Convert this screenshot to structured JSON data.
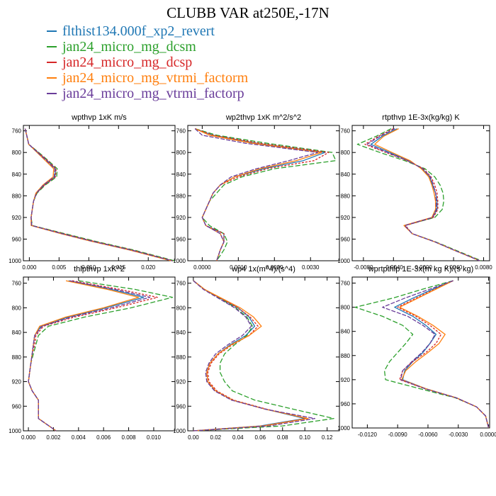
{
  "figure_title": "CLUBB VAR at250E,-17N",
  "series": [
    {
      "name": "flthist134.000f_xp2_revert",
      "color": "#1f77b4",
      "dash": ""
    },
    {
      "name": "jan24_micro_mg_dcsm",
      "color": "#2ca02c",
      "dash": "7,3"
    },
    {
      "name": "jan24_micro_mg_dcsp",
      "color": "#d62728",
      "dash": "3,2"
    },
    {
      "name": "jan24_micro_mg_vtrmi_factorm",
      "color": "#ff7f0e",
      "dash": ""
    },
    {
      "name": "jan24_micro_mg_vtrmi_factorp",
      "color": "#6a3d9a",
      "dash": "6,2"
    }
  ],
  "chart_data": [
    {
      "type": "line",
      "title": "wpthvp   1xK m/s",
      "xlim": [
        -0.001,
        0.0245
      ],
      "ylim": [
        1000,
        750
      ],
      "xticks": [
        0,
        0.005,
        0.01,
        0.015,
        0.02
      ],
      "xticklabels": [
        "0.000",
        "0.005",
        "0.010",
        "0.015",
        "0.020"
      ],
      "yticks": [
        760,
        800,
        840,
        880,
        920,
        960,
        1000
      ],
      "y": [
        756,
        770,
        785,
        800,
        815,
        830,
        845,
        860,
        875,
        890,
        905,
        920,
        935,
        950,
        965,
        980,
        1000
      ],
      "series": [
        {
          "values": [
            -0.0007,
            -0.0004,
            -0.0001,
            0.0015,
            0.003,
            0.0044,
            0.0043,
            0.0025,
            0.0012,
            0.0007,
            0.0005,
            0.0003,
            0.0004,
            0.0055,
            0.011,
            0.017,
            0.024
          ]
        },
        {
          "values": [
            -0.0007,
            -0.0004,
            -0.0001,
            0.0016,
            0.0032,
            0.0047,
            0.0046,
            0.0027,
            0.0013,
            0.0007,
            0.0005,
            0.0003,
            0.0005,
            0.006,
            0.0115,
            0.0175,
            0.0244
          ]
        },
        {
          "values": [
            -0.0007,
            -0.0004,
            -0.0001,
            0.0015,
            0.0031,
            0.0045,
            0.0044,
            0.0026,
            0.0012,
            0.0007,
            0.0005,
            0.0003,
            0.0004,
            0.0057,
            0.0112,
            0.0172,
            0.0241
          ]
        },
        {
          "values": [
            -0.0007,
            -0.0004,
            -0.0001,
            0.0013,
            0.0027,
            0.0041,
            0.004,
            0.0023,
            0.0011,
            0.0007,
            0.0005,
            0.0003,
            0.0003,
            0.0053,
            0.0108,
            0.0168,
            0.0238
          ]
        },
        {
          "values": [
            -0.0007,
            -0.0004,
            -0.0001,
            0.0014,
            0.0029,
            0.0043,
            0.0042,
            0.0024,
            0.0012,
            0.0007,
            0.0005,
            0.0003,
            0.0004,
            0.0055,
            0.011,
            0.017,
            0.024
          ]
        }
      ]
    },
    {
      "type": "line",
      "title": "wp2thvp   1xK m^2/s^2",
      "xlim": [
        -0.0004,
        0.0038
      ],
      "ylim": [
        1000,
        750
      ],
      "xticks": [
        0,
        0.001,
        0.002,
        0.003
      ],
      "xticklabels": [
        "0.0000",
        "0.0010",
        "0.0020",
        "0.0030"
      ],
      "yticks": [
        760,
        800,
        840,
        880,
        920,
        960,
        1000
      ],
      "y": [
        756,
        768,
        783,
        800,
        815,
        830,
        845,
        860,
        875,
        890,
        905,
        920,
        935,
        950,
        965,
        980,
        1000
      ],
      "series": [
        {
          "values": [
            -0.0002,
            0.0003,
            0.0015,
            0.0034,
            0.0028,
            0.0017,
            0.0009,
            0.0005,
            0.0003,
            0.0002,
            0.0001,
            0.0,
            0.0001,
            0.0006,
            0.0006,
            0.0005,
            0.0004
          ]
        },
        {
          "values": [
            -0.0002,
            0.0004,
            0.0018,
            0.0036,
            0.0037,
            0.002,
            0.0011,
            0.0006,
            0.0004,
            0.0002,
            0.0001,
            0.0,
            0.0002,
            0.0006,
            0.0007,
            0.0006,
            0.0004
          ]
        },
        {
          "values": [
            -0.0002,
            0.0003,
            0.0016,
            0.0035,
            0.0031,
            0.0018,
            0.001,
            0.0005,
            0.0003,
            0.0002,
            0.0001,
            0.0,
            0.0001,
            0.0006,
            0.0006,
            0.0005,
            0.0004
          ]
        },
        {
          "values": [
            -0.0002,
            0.0002,
            0.0014,
            0.0033,
            0.0026,
            0.0016,
            0.0009,
            0.0005,
            0.0003,
            0.0002,
            0.0001,
            0.0,
            0.0001,
            0.0005,
            0.0006,
            0.0005,
            0.0004
          ]
        },
        {
          "values": [
            -0.0002,
            0.0,
            0.0012,
            0.0032,
            0.0024,
            0.0015,
            0.0008,
            0.0005,
            0.0003,
            0.0002,
            0.0001,
            0.0,
            0.0001,
            0.0005,
            0.0006,
            0.0005,
            0.0004
          ]
        }
      ]
    },
    {
      "type": "line",
      "title": "rtpthvp   1E-3x(kg/kg) K",
      "xlim": [
        -0.0095,
        0.0088
      ],
      "ylim": [
        1000,
        750
      ],
      "xticks": [
        -0.008,
        -0.004,
        0,
        0.004,
        0.008
      ],
      "xticklabels": [
        "-0.0080",
        "-0.0040",
        "0.0000",
        "0.0040",
        "0.0080"
      ],
      "yticks": [
        760,
        800,
        840,
        880,
        920,
        960,
        1000
      ],
      "y": [
        756,
        770,
        785,
        800,
        815,
        830,
        845,
        860,
        875,
        890,
        905,
        920,
        935,
        950,
        965,
        980,
        1000
      ],
      "series": [
        {
          "values": [
            -0.0035,
            -0.0055,
            -0.007,
            -0.0045,
            -0.002,
            -0.0002,
            0.0008,
            0.0012,
            0.0016,
            0.0018,
            0.0018,
            0.0012,
            -0.0025,
            -0.0015,
            0.0015,
            0.004,
            0.0075
          ]
        },
        {
          "values": [
            -0.0043,
            -0.0063,
            -0.0088,
            -0.0058,
            -0.0025,
            0.0002,
            0.0015,
            0.0022,
            0.0026,
            0.0027,
            0.0025,
            0.0015,
            -0.0025,
            -0.0015,
            0.0016,
            0.0042,
            0.0077
          ]
        },
        {
          "values": [
            -0.004,
            -0.006,
            -0.0078,
            -0.005,
            -0.0022,
            0.0,
            0.001,
            0.0015,
            0.0018,
            0.0019,
            0.0019,
            0.0013,
            -0.0024,
            -0.0015,
            0.0015,
            0.004,
            0.0075
          ]
        },
        {
          "values": [
            -0.0033,
            -0.0053,
            -0.0065,
            -0.0042,
            -0.0018,
            -0.0003,
            0.0007,
            0.0011,
            0.0014,
            0.0016,
            0.0016,
            0.0011,
            -0.0026,
            -0.0015,
            0.0015,
            0.004,
            0.0075
          ]
        },
        {
          "values": [
            -0.0038,
            -0.0058,
            -0.0075,
            -0.0048,
            -0.0021,
            -0.0001,
            0.0009,
            0.0013,
            0.0016,
            0.0017,
            0.0017,
            0.0012,
            -0.0025,
            -0.0015,
            0.0015,
            0.004,
            0.0075
          ]
        }
      ]
    },
    {
      "type": "line",
      "title": "thlpthvp   1xK^2",
      "xlim": [
        -0.0004,
        0.0117
      ],
      "ylim": [
        1000,
        750
      ],
      "xticks": [
        0,
        0.002,
        0.004,
        0.006,
        0.008,
        0.01
      ],
      "xticklabels": [
        "0.000",
        "0.002",
        "0.004",
        "0.006",
        "0.008",
        "0.010"
      ],
      "yticks": [
        760,
        800,
        840,
        880,
        920,
        960,
        1000
      ],
      "y": [
        756,
        770,
        783,
        800,
        815,
        830,
        845,
        860,
        875,
        890,
        905,
        920,
        935,
        950,
        965,
        980,
        1000
      ],
      "series": [
        {
          "values": [
            0.0032,
            0.0066,
            0.0092,
            0.0062,
            0.0032,
            0.001,
            0.0005,
            0.0004,
            0.0003,
            0.0002,
            0.0001,
            0.0,
            0.0003,
            0.0008,
            0.0008,
            0.0008,
            0.0022
          ]
        },
        {
          "values": [
            0.004,
            0.0085,
            0.0115,
            0.0082,
            0.0045,
            0.0016,
            0.0008,
            0.0006,
            0.0004,
            0.0002,
            0.0001,
            0.0,
            0.0003,
            0.0008,
            0.0008,
            0.0008,
            0.0022
          ]
        },
        {
          "values": [
            0.0035,
            0.0073,
            0.0103,
            0.007,
            0.0037,
            0.0012,
            0.0006,
            0.0005,
            0.0003,
            0.0002,
            0.0001,
            0.0,
            0.0003,
            0.0008,
            0.0008,
            0.0008,
            0.0022
          ]
        },
        {
          "values": [
            0.003,
            0.0063,
            0.0088,
            0.006,
            0.003,
            0.0009,
            0.0005,
            0.0004,
            0.0003,
            0.0002,
            0.0001,
            0.0,
            0.0003,
            0.0008,
            0.0008,
            0.0008,
            0.0022
          ]
        },
        {
          "values": [
            0.0033,
            0.0069,
            0.0097,
            0.0066,
            0.0034,
            0.0011,
            0.0005,
            0.0004,
            0.0003,
            0.0002,
            0.0001,
            0.0,
            0.0003,
            0.0008,
            0.0008,
            0.0008,
            0.0022
          ]
        }
      ]
    },
    {
      "type": "line",
      "title": "wp4   1x(m^4)/(s^4)",
      "xlim": [
        -0.005,
        0.131
      ],
      "ylim": [
        1000,
        750
      ],
      "xticks": [
        0,
        0.02,
        0.04,
        0.06,
        0.08,
        0.1,
        0.12
      ],
      "xticklabels": [
        "0.00",
        "0.02",
        "0.04",
        "0.06",
        "0.08",
        "0.10",
        "0.12"
      ],
      "yticks": [
        760,
        800,
        840,
        880,
        920,
        960,
        1000
      ],
      "y": [
        756,
        770,
        785,
        800,
        815,
        830,
        845,
        860,
        875,
        890,
        905,
        920,
        935,
        950,
        965,
        980,
        992,
        1000
      ],
      "series": [
        {
          "values": [
            0.0,
            0.01,
            0.025,
            0.04,
            0.05,
            0.055,
            0.047,
            0.033,
            0.022,
            0.015,
            0.012,
            0.013,
            0.02,
            0.035,
            0.065,
            0.1,
            0.06,
            0.0
          ]
        },
        {
          "values": [
            0.0,
            0.01,
            0.024,
            0.038,
            0.048,
            0.053,
            0.048,
            0.037,
            0.028,
            0.024,
            0.024,
            0.028,
            0.035,
            0.055,
            0.09,
            0.126,
            0.08,
            0.0
          ]
        },
        {
          "values": [
            0.0,
            0.01,
            0.025,
            0.04,
            0.051,
            0.058,
            0.05,
            0.035,
            0.023,
            0.016,
            0.013,
            0.014,
            0.021,
            0.036,
            0.066,
            0.102,
            0.062,
            0.0
          ]
        },
        {
          "values": [
            0.0,
            0.01,
            0.026,
            0.042,
            0.054,
            0.061,
            0.05,
            0.034,
            0.022,
            0.015,
            0.012,
            0.013,
            0.02,
            0.035,
            0.065,
            0.103,
            0.063,
            0.0
          ]
        },
        {
          "values": [
            0.0,
            0.009,
            0.023,
            0.037,
            0.047,
            0.052,
            0.044,
            0.031,
            0.02,
            0.014,
            0.011,
            0.012,
            0.019,
            0.034,
            0.065,
            0.109,
            0.068,
            0.0
          ]
        }
      ]
    },
    {
      "type": "line",
      "title": "wprtpthlp   1E-3x(m kg K)/(s kg)",
      "xlim": [
        -0.0135,
        0.0001
      ],
      "ylim": [
        1000,
        750
      ],
      "xticks": [
        -0.012,
        -0.009,
        -0.006,
        -0.003,
        0
      ],
      "xticklabels": [
        "-0.0120",
        "-0.0090",
        "-0.0060",
        "-0.0030",
        "0.0000"
      ],
      "yticks": [
        760,
        800,
        840,
        880,
        920,
        960,
        1000
      ],
      "y": [
        756,
        770,
        785,
        800,
        815,
        830,
        845,
        860,
        875,
        890,
        905,
        920,
        935,
        950,
        965,
        980,
        1000
      ],
      "series": [
        {
          "values": [
            -0.0035,
            -0.0055,
            -0.0075,
            -0.0093,
            -0.0075,
            -0.0062,
            -0.0052,
            -0.0058,
            -0.0065,
            -0.0075,
            -0.0083,
            -0.0085,
            -0.0062,
            -0.0032,
            -0.0012,
            -0.0003,
            0.0
          ]
        },
        {
          "values": [
            -0.0035,
            -0.0065,
            -0.0095,
            -0.0132,
            -0.0105,
            -0.0085,
            -0.0075,
            -0.0082,
            -0.009,
            -0.0098,
            -0.0103,
            -0.0102,
            -0.0068,
            -0.0033,
            -0.0012,
            -0.0003,
            0.0
          ]
        },
        {
          "values": [
            -0.0035,
            -0.0053,
            -0.0072,
            -0.009,
            -0.0072,
            -0.0058,
            -0.0047,
            -0.0052,
            -0.0062,
            -0.0075,
            -0.0085,
            -0.0088,
            -0.0063,
            -0.0032,
            -0.0012,
            -0.0003,
            0.0
          ]
        },
        {
          "values": [
            -0.0035,
            -0.0052,
            -0.007,
            -0.0088,
            -0.007,
            -0.0055,
            -0.0043,
            -0.0049,
            -0.006,
            -0.0072,
            -0.0082,
            -0.0086,
            -0.0062,
            -0.0032,
            -0.0012,
            -0.0003,
            0.0
          ]
        },
        {
          "values": [
            -0.0035,
            -0.0058,
            -0.0083,
            -0.0105,
            -0.008,
            -0.0065,
            -0.0053,
            -0.0058,
            -0.0066,
            -0.0076,
            -0.0085,
            -0.0087,
            -0.0063,
            -0.0032,
            -0.0012,
            -0.0003,
            0.0
          ]
        }
      ]
    }
  ]
}
